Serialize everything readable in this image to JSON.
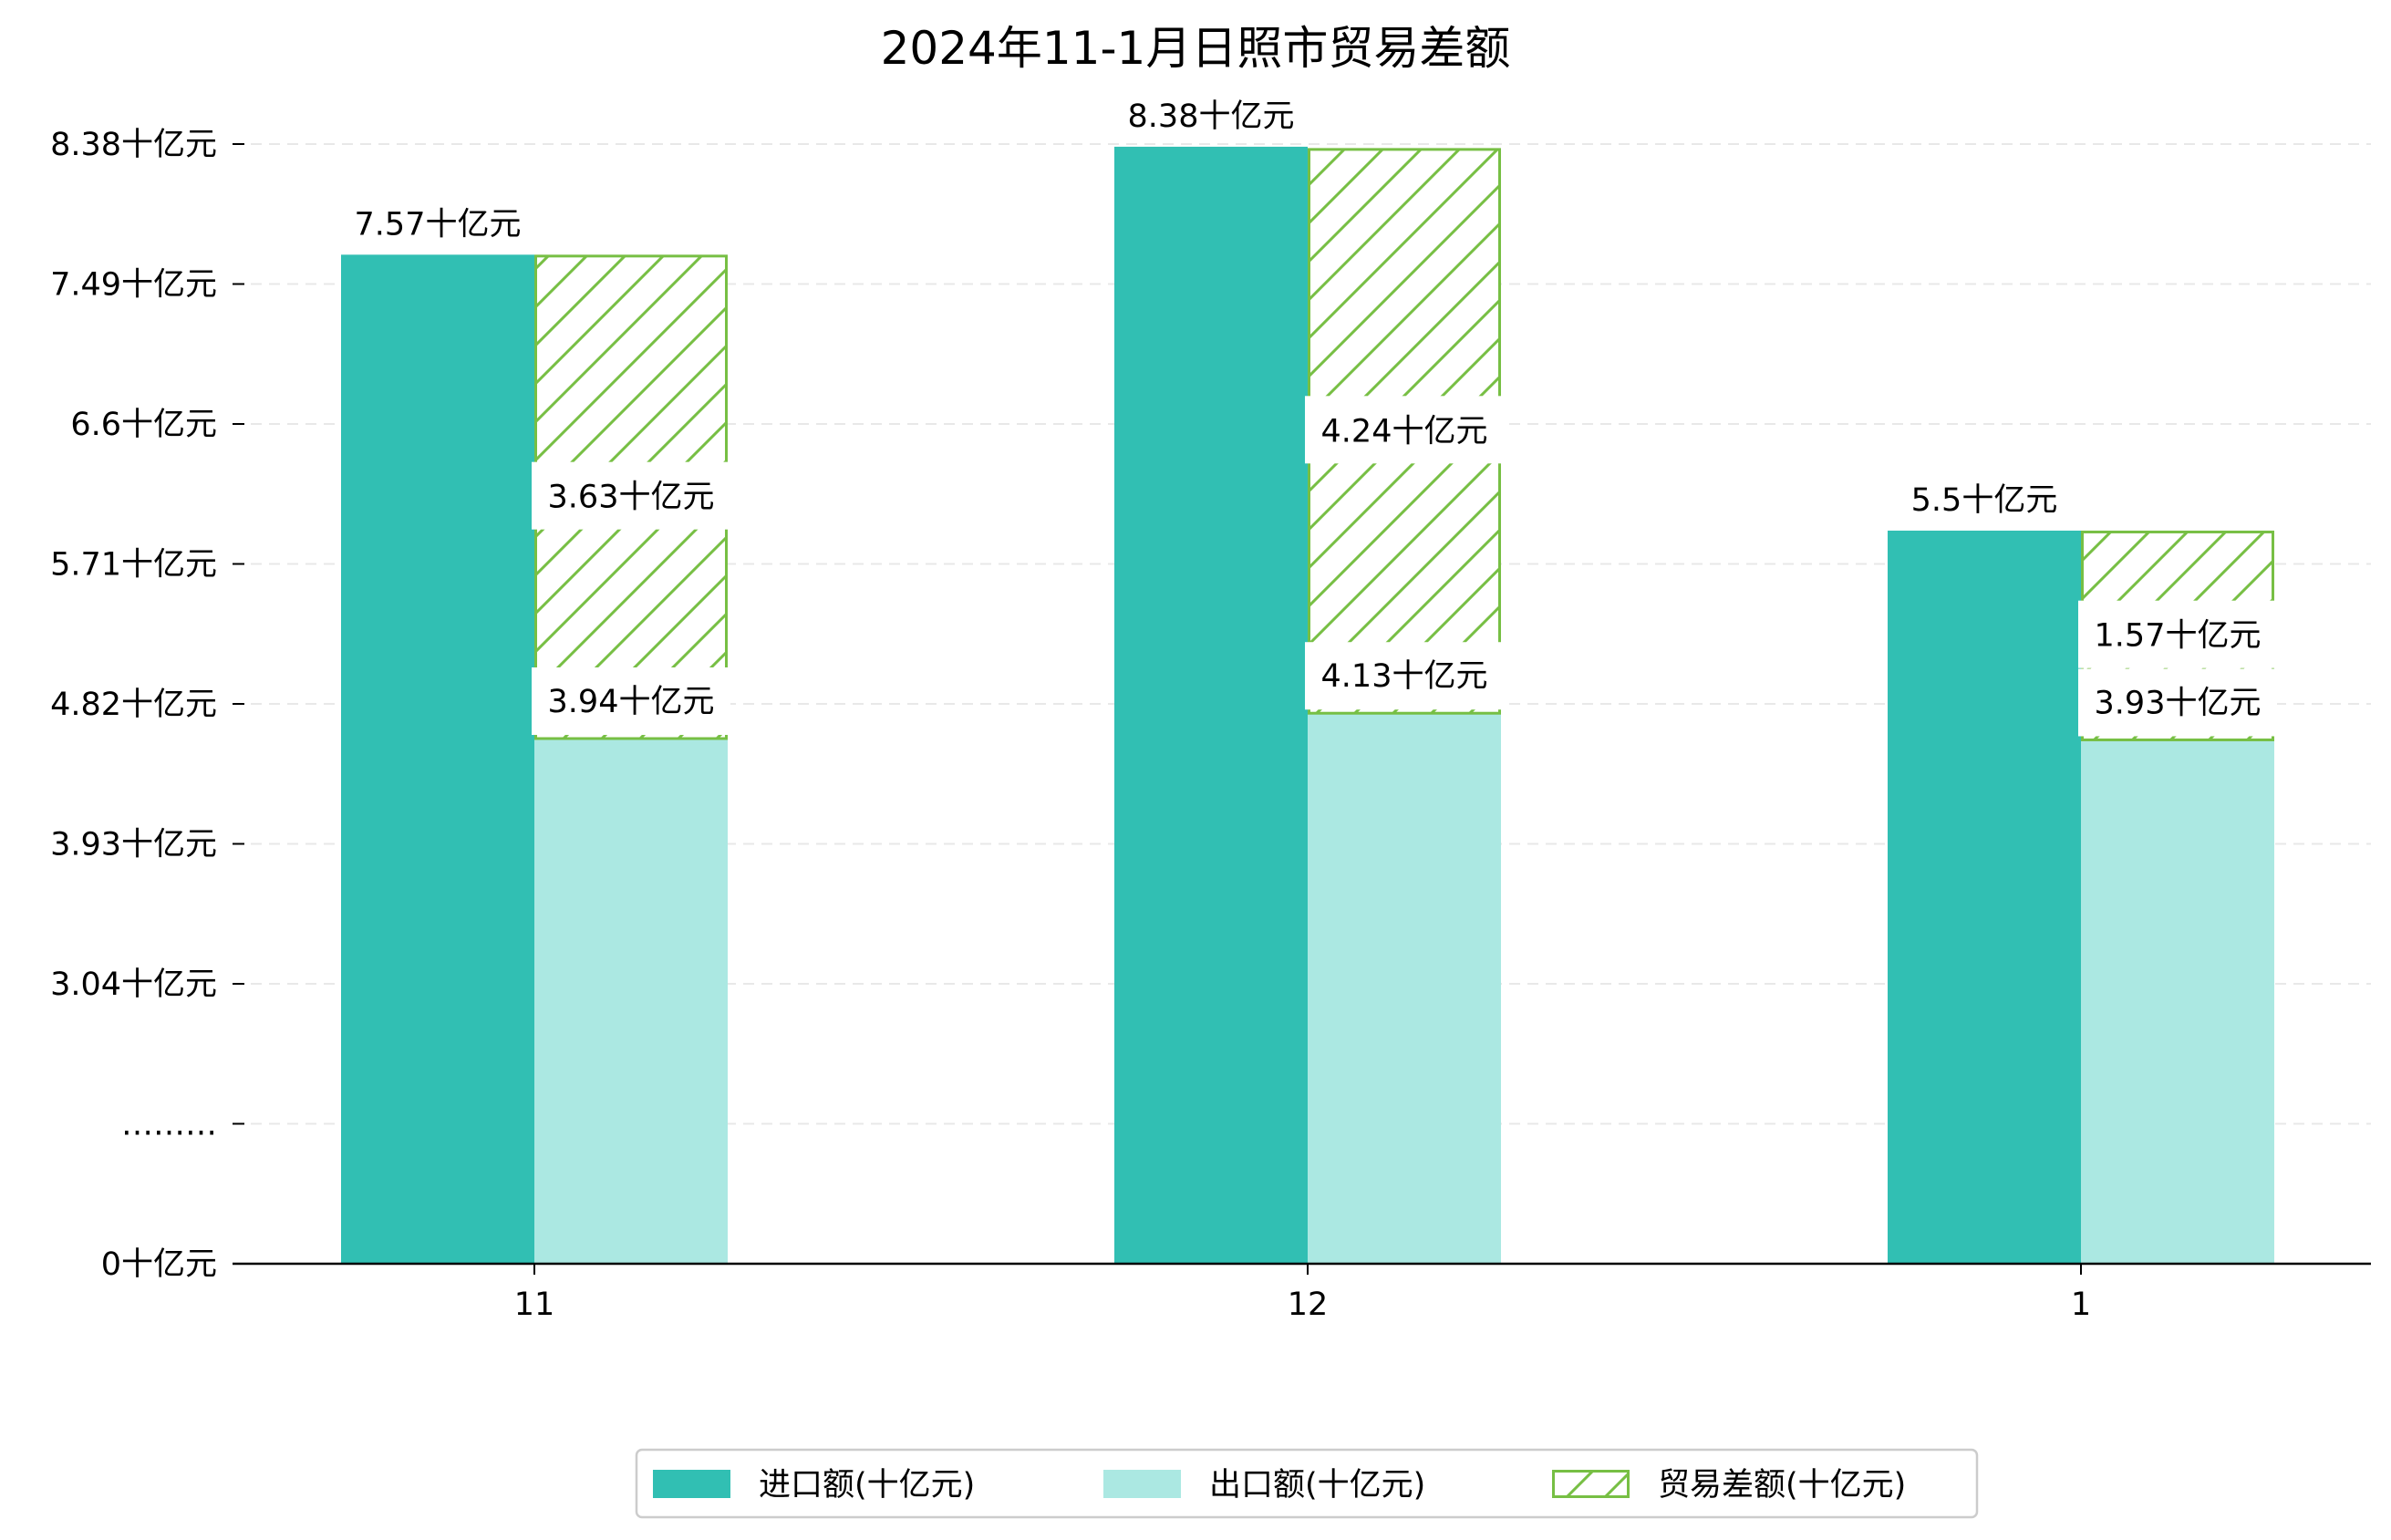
{
  "chart_data": {
    "type": "bar",
    "title": "2024年11-1月日照市贸易差额",
    "categories": [
      "11",
      "12",
      "1"
    ],
    "series": [
      {
        "name": "进口额(十亿元)",
        "values": [
          7.57,
          8.38,
          5.5
        ],
        "color": "#31bfb3",
        "fill": "solid"
      },
      {
        "name": "出口额(十亿元)",
        "values": [
          3.94,
          4.13,
          3.93
        ],
        "color": "#abe8e2",
        "fill": "solid"
      },
      {
        "name": "贸易差额(十亿元)",
        "values": [
          3.63,
          4.24,
          1.57
        ],
        "color": "#77bf44",
        "fill": "hatch"
      }
    ],
    "data_labels": {
      "import": [
        "7.57十亿元",
        "8.38十亿元",
        "5.5十亿元"
      ],
      "export": [
        "3.94十亿元",
        "4.13十亿元",
        "3.93十亿元"
      ],
      "balance": [
        "3.63十亿元",
        "4.24十亿元",
        "1.57十亿元"
      ]
    },
    "yticks": [
      {
        "value": 0,
        "label": "0十亿元"
      },
      {
        "value": 1.05,
        "label": "………"
      },
      {
        "value": 2.1,
        "label": "3.04十亿元"
      },
      {
        "value": 3.15,
        "label": "3.93十亿元"
      },
      {
        "value": 4.2,
        "label": "4.82十亿元"
      },
      {
        "value": 5.25,
        "label": "5.71十亿元"
      },
      {
        "value": 6.3,
        "label": "6.6十亿元"
      },
      {
        "value": 7.35,
        "label": "7.49十亿元"
      },
      {
        "value": 8.4,
        "label": "8.38十亿元"
      }
    ],
    "ylim": [
      0,
      8.4
    ],
    "grid": true,
    "legend": "bottom-center"
  }
}
